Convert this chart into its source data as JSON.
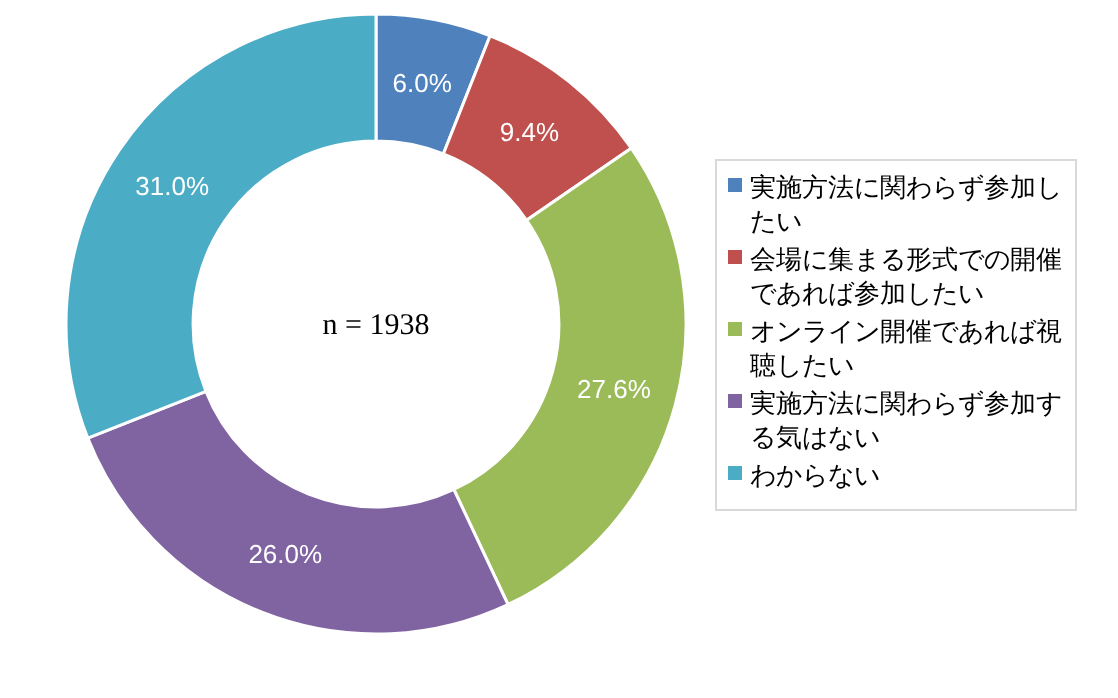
{
  "chart_data": {
    "type": "donut",
    "categories": [
      "実施方法に関わらず参加したい",
      "会場に集まる形式での開催であれば参加したい",
      "オンライン開催であれば視聴したい",
      "実施方法に関わらず参加する気はない",
      "わからない"
    ],
    "values": [
      6.0,
      9.4,
      27.6,
      26.0,
      31.0
    ],
    "value_labels": [
      "6.0%",
      "9.4%",
      "27.6%",
      "26.0%",
      "31.0%"
    ],
    "colors": [
      "#4f81bd",
      "#c0504d",
      "#9bbb59",
      "#8064a2",
      "#4bacc6"
    ],
    "annotations": [
      "n = 1938"
    ],
    "legend": "right"
  }
}
